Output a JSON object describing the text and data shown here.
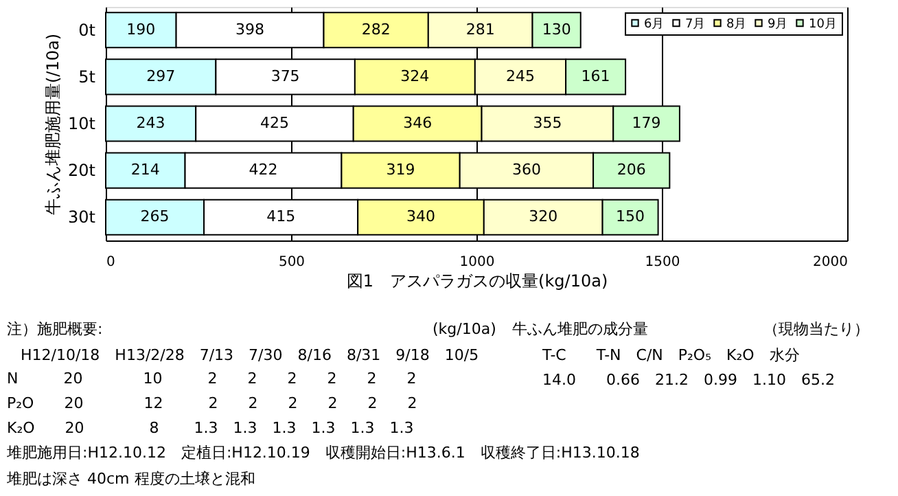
{
  "chart_data": {
    "type": "bar",
    "orientation": "horizontal",
    "stacked": true,
    "xlabel": "図1　アスパラガスの収量(kg/10a)",
    "ylabel": "牛ふん堆肥施用量(/10a)",
    "categories": [
      "0t",
      "5t",
      "10t",
      "20t",
      "30t"
    ],
    "series": [
      {
        "name": "6月",
        "color": "#ccffff",
        "values": [
          190,
          297,
          243,
          214,
          265
        ]
      },
      {
        "name": "7月",
        "color": "#ffffff",
        "values": [
          398,
          375,
          425,
          422,
          415
        ]
      },
      {
        "name": "8月",
        "color": "#ffff99",
        "values": [
          282,
          324,
          346,
          319,
          340
        ]
      },
      {
        "name": "9月",
        "color": "#ffffcc",
        "values": [
          281,
          245,
          355,
          360,
          320
        ]
      },
      {
        "name": "10月",
        "color": "#ccffcc",
        "values": [
          130,
          161,
          179,
          206,
          150
        ]
      }
    ],
    "xlim": [
      0,
      2000
    ],
    "xticks": [
      0,
      500,
      1000,
      1500,
      2000
    ],
    "grid": "x",
    "legend": "top right",
    "data_labels": true,
    "annotations": [
      "注）施肥概要:",
      "(kg/10a)",
      "H12/10/18　H13/2/28　7/13　7/30　8/16　8/31　9/18　10/5",
      "N　　　20　　　　10　　　2　　2　　2　　2　　2　　2",
      "P₂O　　20　　　　12　　　2　　2　　2　　2　　2　　2",
      "K₂O　　20　　　　 8　　 1.3　1.3　1.3　1.3　1.3　1.3",
      "堆肥施用日:H12.10.12　定植日:H12.10.19　収穫開始日:H13.6.1　収穫終了日:H13.10.18",
      "堆肥は深さ 40cm 程度の土壌と混和",
      "牛ふん堆肥の成分量",
      "（現物当たり）",
      "T-C　　T-N　C/N　P₂O₅　K₂O　水分",
      "14.0　　0.66　21.2　0.99　1.10　65.2"
    ]
  }
}
